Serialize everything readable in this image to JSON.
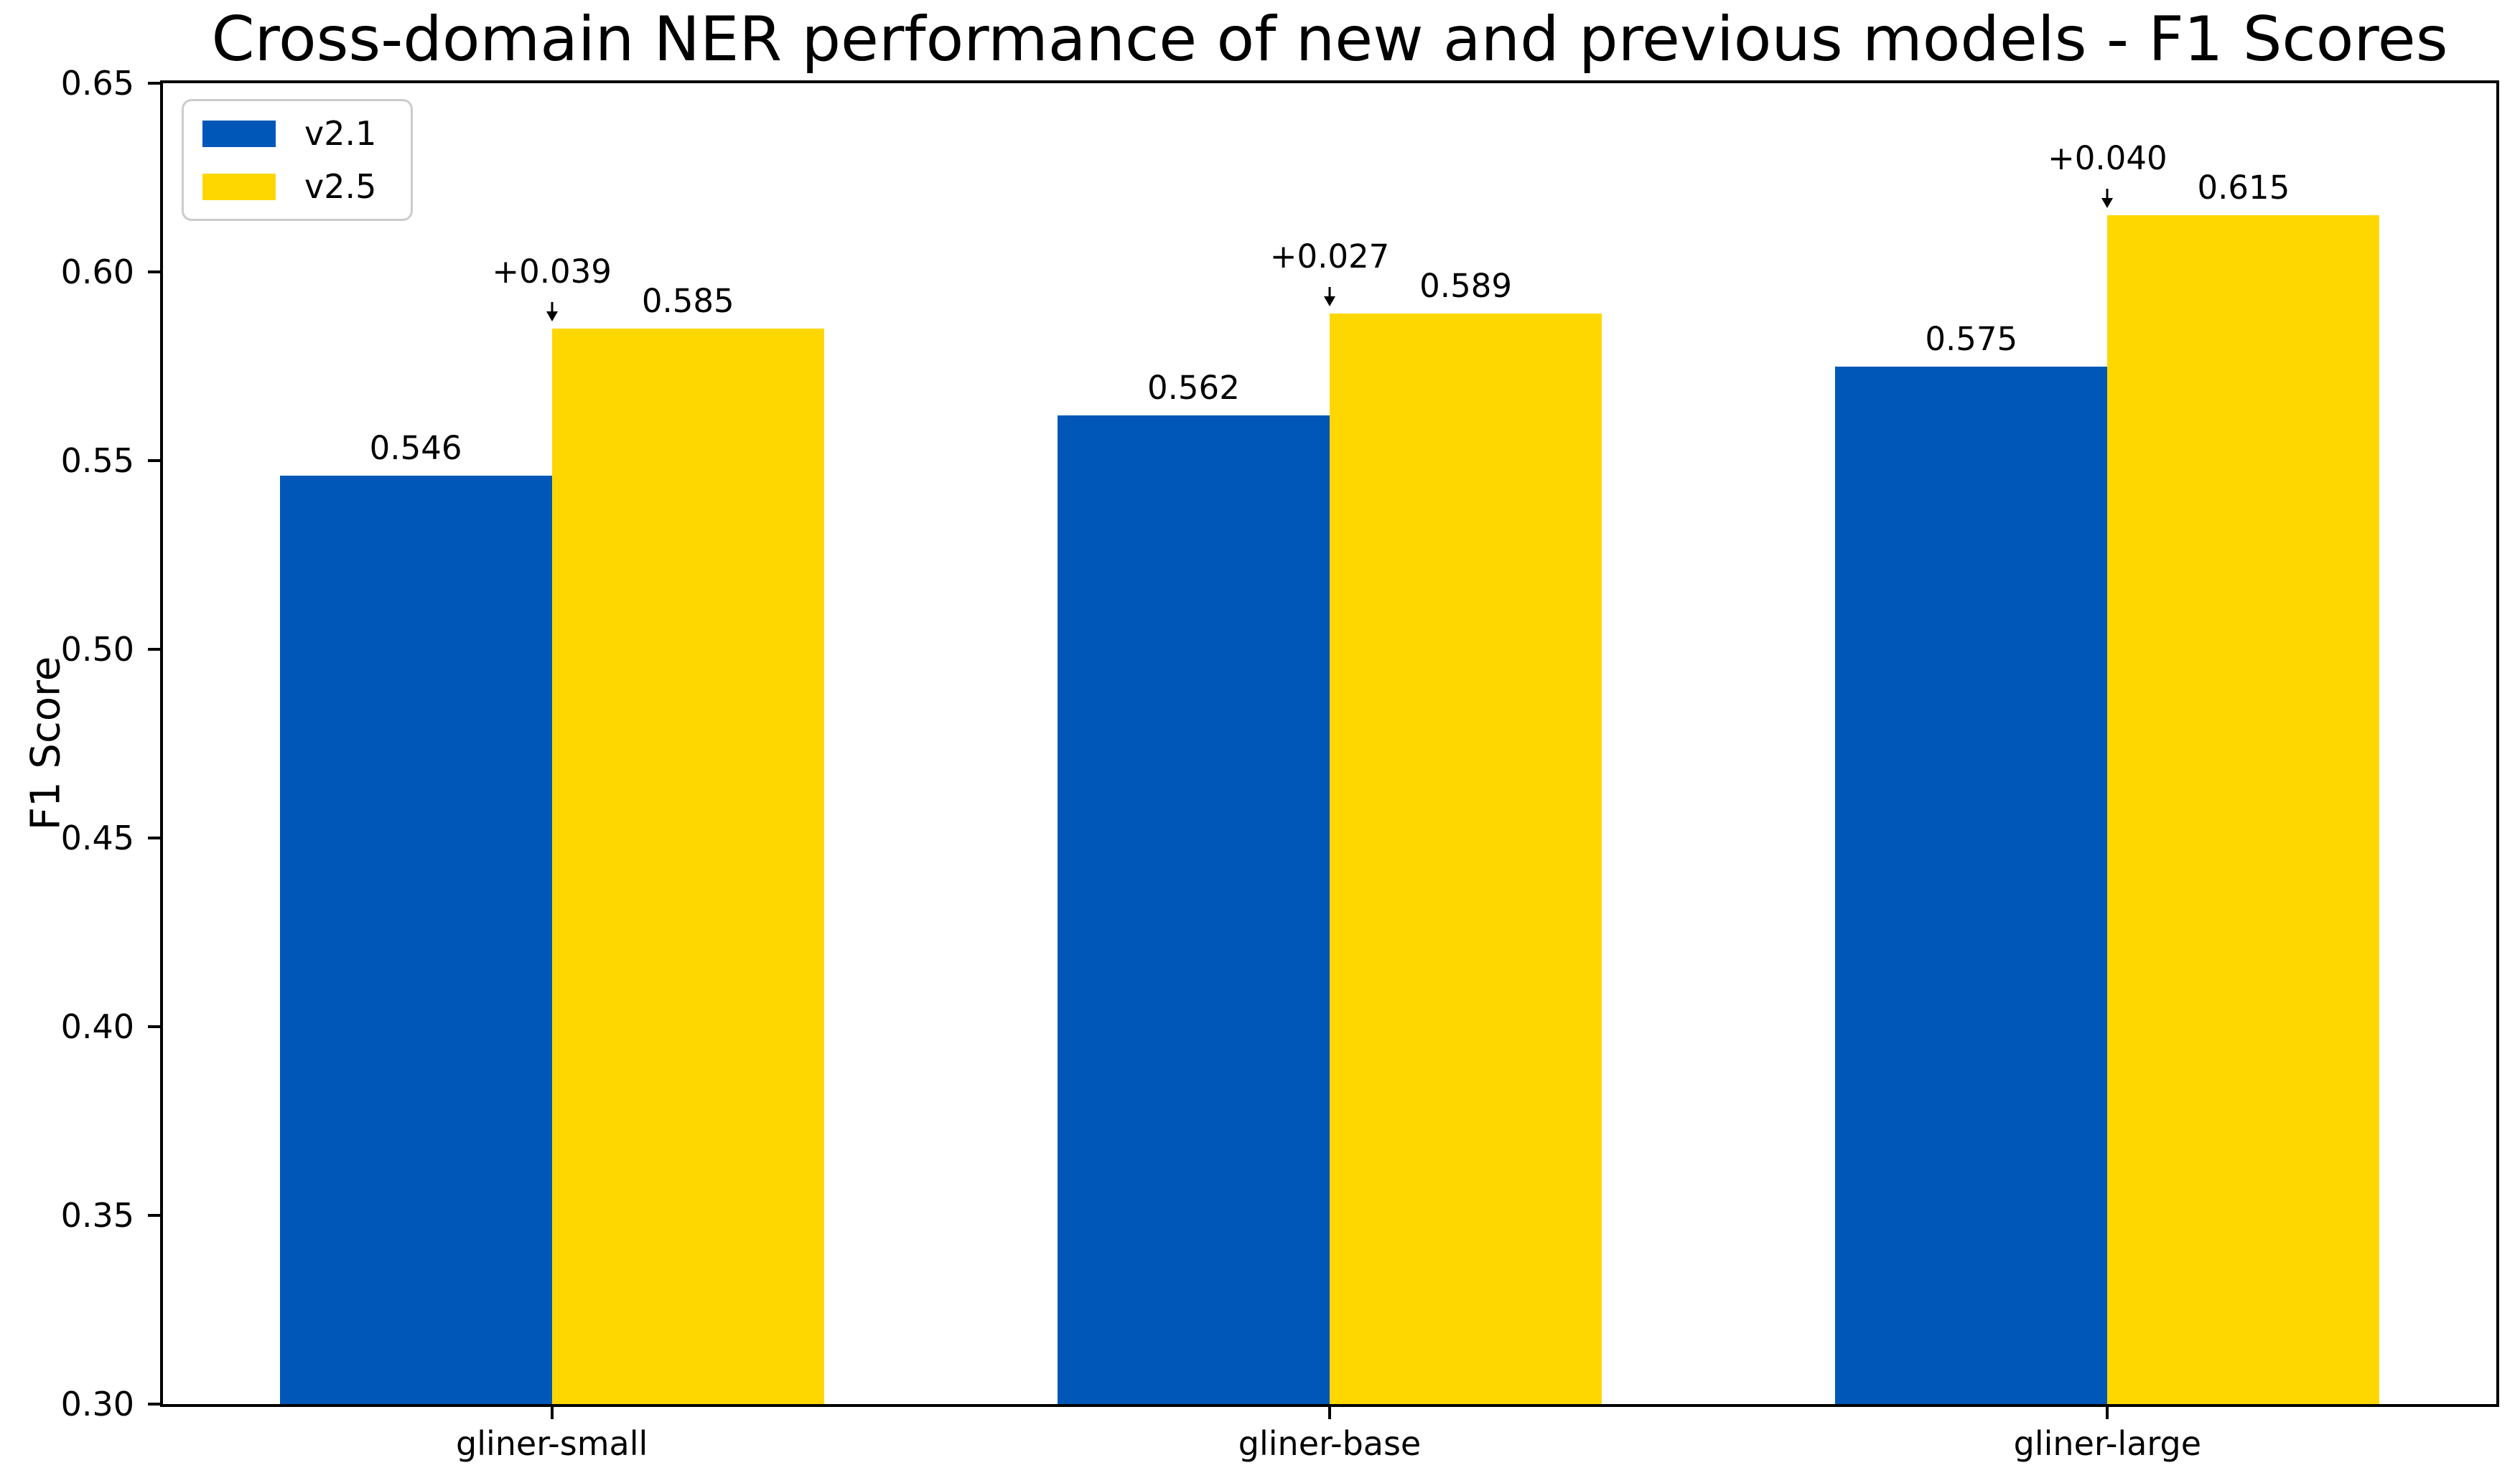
{
  "chart_data": {
    "type": "bar",
    "title": "Cross-domain NER performance of new and previous models - F1 Scores",
    "xlabel": "",
    "ylabel": "F1 Score",
    "categories": [
      "gliner-small",
      "gliner-base",
      "gliner-large"
    ],
    "series": [
      {
        "name": "v2.1",
        "color": "#0057B7",
        "values": [
          0.546,
          0.562,
          0.575
        ],
        "labels": [
          "0.546",
          "0.562",
          "0.575"
        ]
      },
      {
        "name": "v2.5",
        "color": "#FFD700",
        "values": [
          0.585,
          0.589,
          0.615
        ],
        "labels": [
          "0.585",
          "0.589",
          "0.615"
        ]
      }
    ],
    "delta_annotations": [
      "+0.039",
      "+0.027",
      "+0.040"
    ],
    "ylim": [
      0.3,
      0.65
    ],
    "yticks": [
      0.3,
      0.35,
      0.4,
      0.45,
      0.5,
      0.55,
      0.6,
      0.65
    ],
    "ytick_labels": [
      "0.30",
      "0.35",
      "0.40",
      "0.45",
      "0.50",
      "0.55",
      "0.60",
      "0.65"
    ],
    "bar_width": 0.35,
    "grid": false,
    "legend": {
      "position": "upper-left",
      "entries": [
        "v2.1",
        "v2.5"
      ]
    },
    "colors": {
      "text": "#000000",
      "spine": "#000000",
      "legend_border": "#CCCCCC",
      "background": "#FFFFFF"
    }
  }
}
